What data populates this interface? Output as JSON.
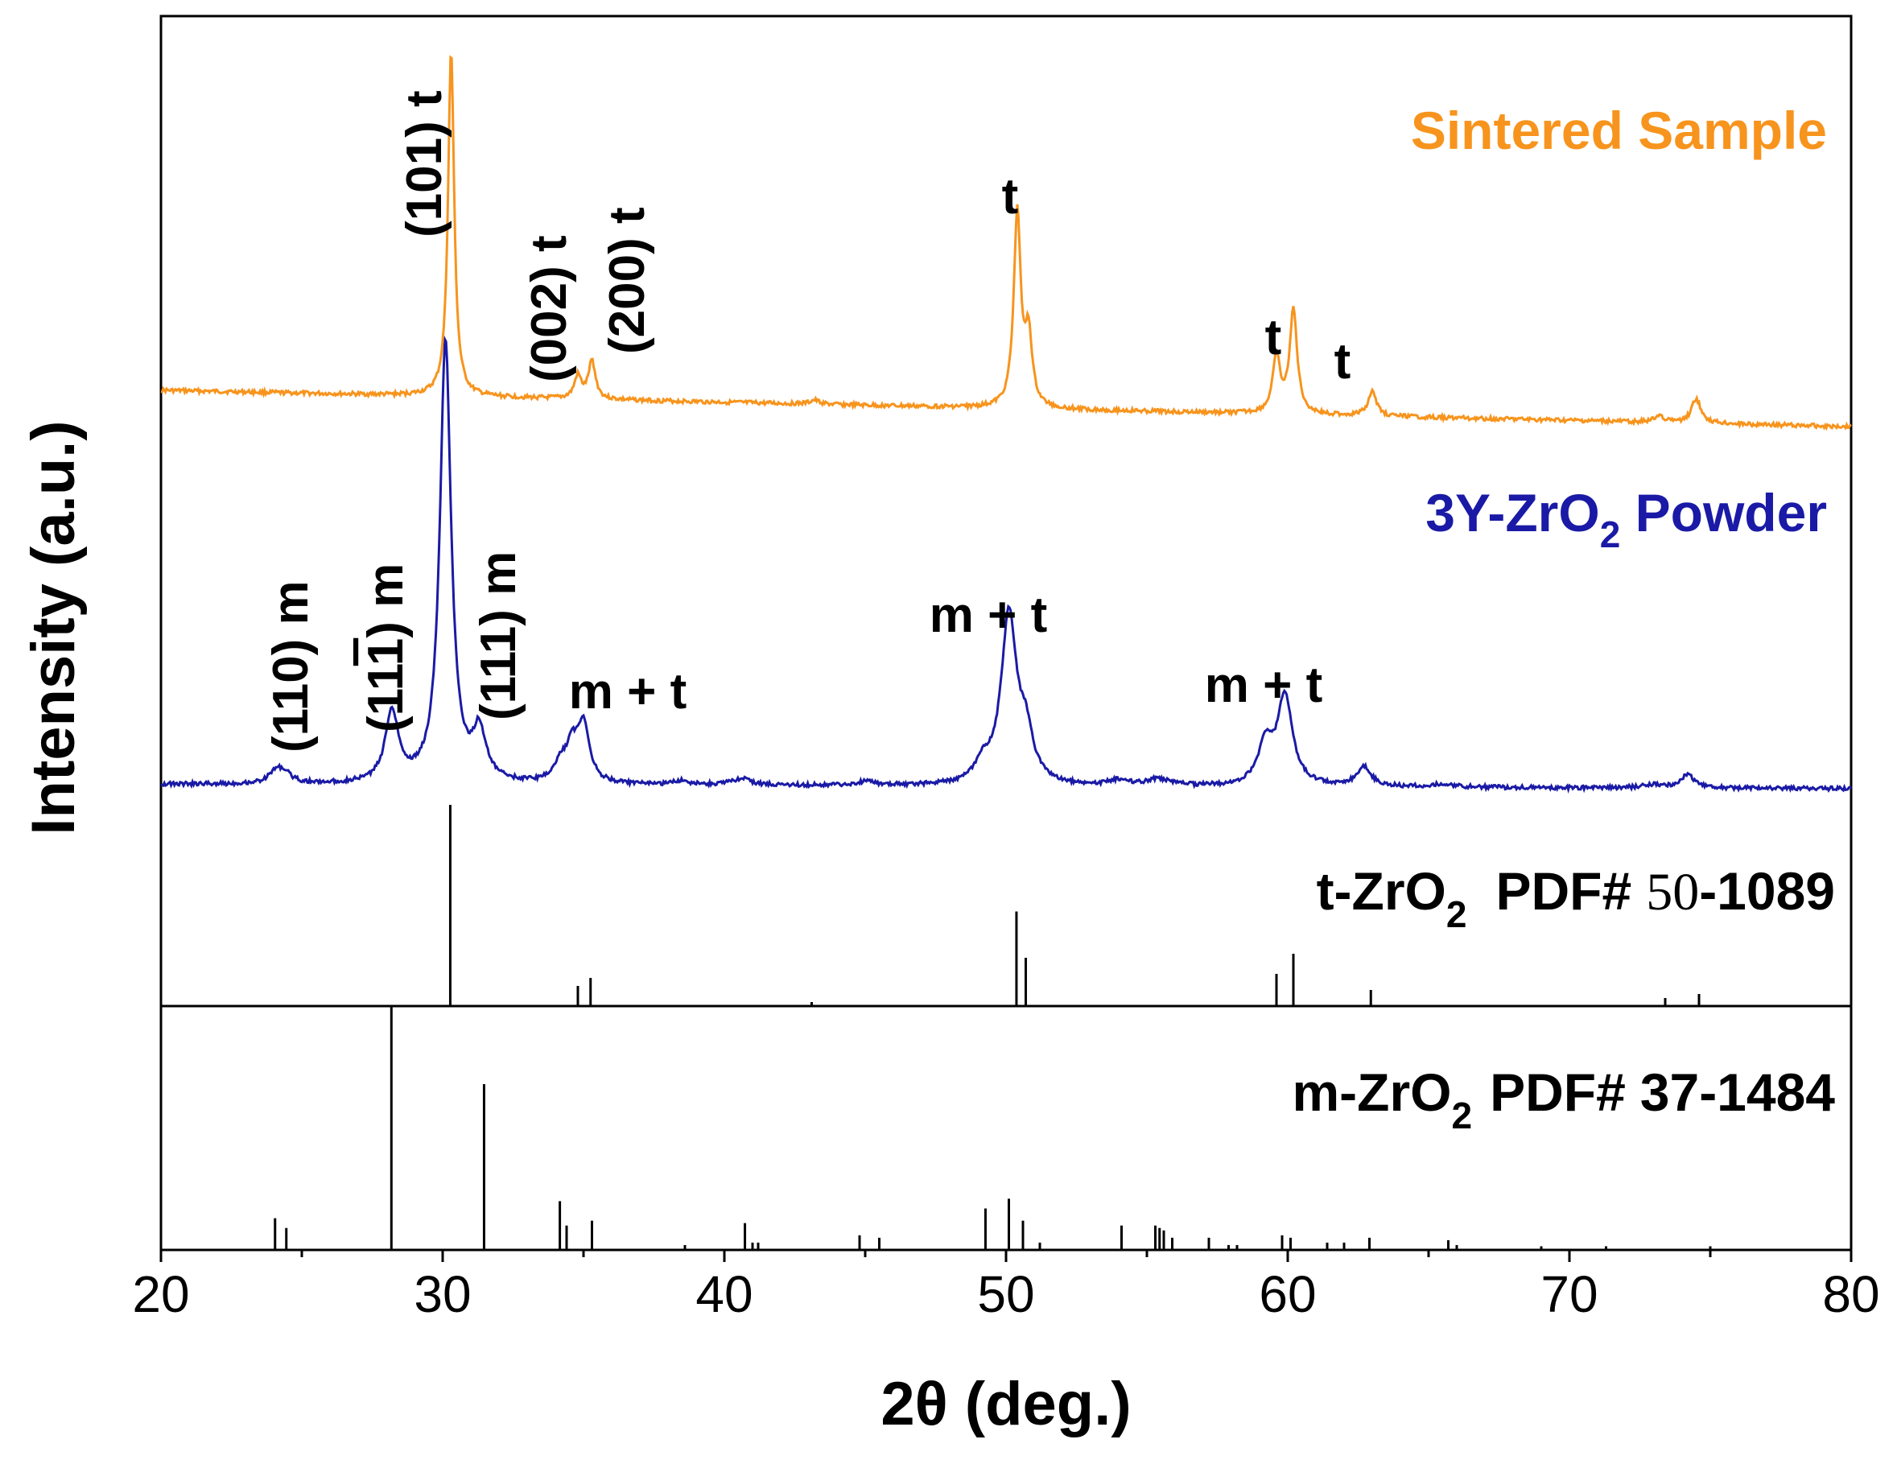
{
  "chart_data": {
    "type": "line",
    "title": "",
    "xlabel": "2θ (deg.)",
    "ylabel": "Intensity (a.u.)",
    "xlim": [
      20,
      80
    ],
    "xticks": [
      20,
      30,
      40,
      50,
      60,
      70,
      80
    ],
    "tick_labels": [
      "20",
      "30",
      "40",
      "50",
      "60",
      "70",
      "80"
    ],
    "colors": {
      "sintered": "#F7941D",
      "powder": "#1A1AA6",
      "ref": "#000000",
      "axis": "#000000"
    },
    "series": [
      {
        "name": "Sintered Sample",
        "baseline_start": 0.105,
        "baseline_end": 0.0,
        "peaks": [
          {
            "x": 30.3,
            "h": 1.0,
            "w": 0.13
          },
          {
            "x": 34.8,
            "h": 0.065,
            "w": 0.15
          },
          {
            "x": 35.3,
            "h": 0.11,
            "w": 0.15
          },
          {
            "x": 43.2,
            "h": 0.012,
            "w": 0.2
          },
          {
            "x": 50.4,
            "h": 0.56,
            "w": 0.15
          },
          {
            "x": 50.8,
            "h": 0.2,
            "w": 0.15
          },
          {
            "x": 59.6,
            "h": 0.16,
            "w": 0.16
          },
          {
            "x": 60.2,
            "h": 0.3,
            "w": 0.16
          },
          {
            "x": 63.0,
            "h": 0.07,
            "w": 0.18
          },
          {
            "x": 73.2,
            "h": 0.02,
            "w": 0.2
          },
          {
            "x": 74.5,
            "h": 0.07,
            "w": 0.2
          }
        ]
      },
      {
        "name": "3Y-ZrO2 Powder",
        "baseline_start": 0.01,
        "baseline_end": 0.0,
        "peaks": [
          {
            "x": 24.1,
            "h": 0.028,
            "w": 0.3
          },
          {
            "x": 24.4,
            "h": 0.018,
            "w": 0.3
          },
          {
            "x": 28.2,
            "h": 0.16,
            "w": 0.28
          },
          {
            "x": 30.1,
            "h": 1.0,
            "w": 0.24
          },
          {
            "x": 31.3,
            "h": 0.11,
            "w": 0.28
          },
          {
            "x": 34.2,
            "h": 0.04,
            "w": 0.3
          },
          {
            "x": 34.6,
            "h": 0.07,
            "w": 0.25
          },
          {
            "x": 35.0,
            "h": 0.13,
            "w": 0.25
          },
          {
            "x": 38.5,
            "h": 0.01,
            "w": 0.3
          },
          {
            "x": 40.6,
            "h": 0.015,
            "w": 0.4
          },
          {
            "x": 45.0,
            "h": 0.008,
            "w": 0.4
          },
          {
            "x": 49.2,
            "h": 0.04,
            "w": 0.35
          },
          {
            "x": 50.1,
            "h": 0.38,
            "w": 0.33
          },
          {
            "x": 50.7,
            "h": 0.1,
            "w": 0.3
          },
          {
            "x": 54.0,
            "h": 0.012,
            "w": 0.4
          },
          {
            "x": 55.4,
            "h": 0.015,
            "w": 0.5
          },
          {
            "x": 59.2,
            "h": 0.09,
            "w": 0.3
          },
          {
            "x": 59.9,
            "h": 0.2,
            "w": 0.33
          },
          {
            "x": 62.7,
            "h": 0.045,
            "w": 0.3
          },
          {
            "x": 65.5,
            "h": 0.008,
            "w": 0.5
          },
          {
            "x": 73.0,
            "h": 0.008,
            "w": 0.4
          },
          {
            "x": 74.2,
            "h": 0.03,
            "w": 0.3
          }
        ]
      }
    ],
    "reference_patterns": [
      {
        "name": "t-ZrO2 PDF# 50-1089",
        "lines": [
          {
            "x": 30.27,
            "i": 1.0
          },
          {
            "x": 34.8,
            "i": 0.1
          },
          {
            "x": 35.25,
            "i": 0.14
          },
          {
            "x": 43.1,
            "i": 0.02
          },
          {
            "x": 50.37,
            "i": 0.47
          },
          {
            "x": 50.7,
            "i": 0.24
          },
          {
            "x": 59.6,
            "i": 0.16
          },
          {
            "x": 60.2,
            "i": 0.26
          },
          {
            "x": 62.95,
            "i": 0.08
          },
          {
            "x": 73.4,
            "i": 0.04
          },
          {
            "x": 74.6,
            "i": 0.06
          }
        ]
      },
      {
        "name": "m-ZrO2 PDF# 37-1484",
        "lines": [
          {
            "x": 24.05,
            "i": 0.13
          },
          {
            "x": 24.45,
            "i": 0.09
          },
          {
            "x": 28.18,
            "i": 1.0
          },
          {
            "x": 31.47,
            "i": 0.68
          },
          {
            "x": 34.16,
            "i": 0.2
          },
          {
            "x": 34.4,
            "i": 0.1
          },
          {
            "x": 35.3,
            "i": 0.12
          },
          {
            "x": 38.6,
            "i": 0.02
          },
          {
            "x": 40.73,
            "i": 0.11
          },
          {
            "x": 41.0,
            "i": 0.03
          },
          {
            "x": 41.2,
            "i": 0.03
          },
          {
            "x": 44.8,
            "i": 0.06
          },
          {
            "x": 45.5,
            "i": 0.05
          },
          {
            "x": 49.27,
            "i": 0.17
          },
          {
            "x": 50.1,
            "i": 0.21
          },
          {
            "x": 50.6,
            "i": 0.12
          },
          {
            "x": 51.2,
            "i": 0.03
          },
          {
            "x": 54.1,
            "i": 0.1
          },
          {
            "x": 55.3,
            "i": 0.1
          },
          {
            "x": 55.45,
            "i": 0.09
          },
          {
            "x": 55.6,
            "i": 0.08
          },
          {
            "x": 55.9,
            "i": 0.05
          },
          {
            "x": 57.2,
            "i": 0.05
          },
          {
            "x": 57.9,
            "i": 0.02
          },
          {
            "x": 58.2,
            "i": 0.02
          },
          {
            "x": 59.8,
            "i": 0.06
          },
          {
            "x": 60.1,
            "i": 0.05
          },
          {
            "x": 61.4,
            "i": 0.03
          },
          {
            "x": 62.0,
            "i": 0.03
          },
          {
            "x": 62.9,
            "i": 0.05
          },
          {
            "x": 65.7,
            "i": 0.04
          },
          {
            "x": 66.0,
            "i": 0.02
          },
          {
            "x": 69.0,
            "i": 0.015
          },
          {
            "x": 71.3,
            "i": 0.015
          },
          {
            "x": 75.0,
            "i": 0.015
          }
        ]
      }
    ],
    "legend": {
      "sintered": "Sintered Sample",
      "powder_main": "3Y-ZrO",
      "powder_sub": "2",
      "powder_tail": " Powder",
      "t_ref_main": "t-ZrO",
      "t_ref_sub": "2",
      "t_ref_pdf": "PDF#",
      "t_ref_num_a": "50",
      "t_ref_num_b": "-1089",
      "m_ref_main": "m-ZrO",
      "m_ref_sub": "2",
      "m_ref_pdf": "PDF#",
      "m_ref_num": "37-1484"
    },
    "annotations": {
      "sintered": {
        "p101": "(101) t",
        "p002": "(002) t",
        "p200": "(200) t",
        "t50": "t",
        "t59": "t",
        "t63": "t"
      },
      "powder": {
        "p110": "(110) m",
        "p11m1_open": "(11",
        "p11m1_bar": "1",
        "p11m1_close": ") m",
        "p111": "(111) m",
        "mt35": "m + t",
        "mt50": "m + t",
        "mt60": "m + t"
      }
    }
  }
}
